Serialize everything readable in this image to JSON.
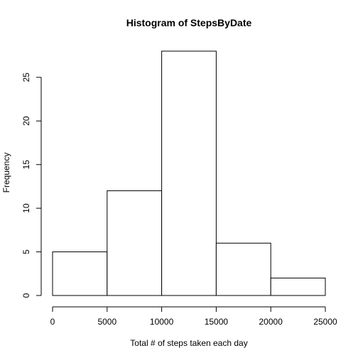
{
  "chart_data": {
    "type": "bar",
    "title": "Histogram of StepsByDate",
    "xlabel": "Total # of steps taken each day",
    "ylabel": "Frequency",
    "bins": [
      {
        "start": 0,
        "end": 5000,
        "count": 5
      },
      {
        "start": 5000,
        "end": 10000,
        "count": 12
      },
      {
        "start": 10000,
        "end": 15000,
        "count": 28
      },
      {
        "start": 15000,
        "end": 20000,
        "count": 6
      },
      {
        "start": 20000,
        "end": 25000,
        "count": 2
      }
    ],
    "xlim": [
      0,
      25000
    ],
    "ylim": [
      0,
      28
    ],
    "x_ticks": [
      0,
      5000,
      10000,
      15000,
      20000,
      25000
    ],
    "y_ticks": [
      0,
      5,
      10,
      15,
      20,
      25
    ],
    "grid": false,
    "colors": {
      "bar_fill": "#ffffff",
      "bar_stroke": "#000000",
      "axis": "#000000"
    }
  }
}
